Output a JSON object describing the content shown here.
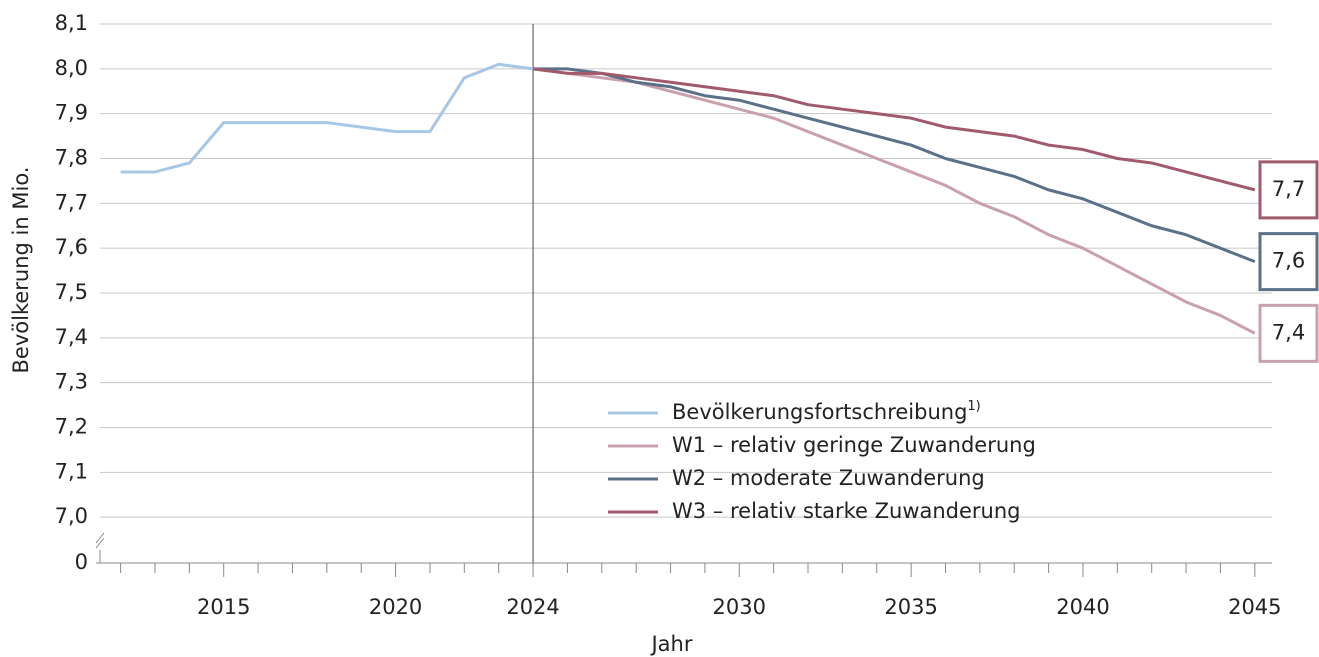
{
  "chart_data": {
    "type": "line",
    "y_axis_label": "Bevölkerung in Mio.",
    "x_axis_label": "Jahr",
    "x": [
      2012,
      2013,
      2014,
      2015,
      2016,
      2017,
      2018,
      2019,
      2020,
      2021,
      2022,
      2023,
      2024,
      2025,
      2026,
      2027,
      2028,
      2029,
      2030,
      2031,
      2032,
      2033,
      2034,
      2035,
      2036,
      2037,
      2038,
      2039,
      2040,
      2041,
      2042,
      2043,
      2044,
      2045
    ],
    "xlim": [
      2011.4,
      2045.5
    ],
    "xticks": [
      2015,
      2020,
      2024,
      2030,
      2035,
      2040,
      2045
    ],
    "marker_x": 2024,
    "ylim": [
      6.9,
      8.1
    ],
    "axis_break": true,
    "yticks": [
      {
        "value": 0,
        "label": "0"
      },
      {
        "value": 7.0,
        "label": "7,0"
      },
      {
        "value": 7.1,
        "label": "7,1"
      },
      {
        "value": 7.2,
        "label": "7,2"
      },
      {
        "value": 7.3,
        "label": "7,3"
      },
      {
        "value": 7.4,
        "label": "7,4"
      },
      {
        "value": 7.5,
        "label": "7,5"
      },
      {
        "value": 7.6,
        "label": "7,6"
      },
      {
        "value": 7.7,
        "label": "7,7"
      },
      {
        "value": 7.8,
        "label": "7,8"
      },
      {
        "value": 7.9,
        "label": "7,9"
      },
      {
        "value": 8.0,
        "label": "8,0"
      },
      {
        "value": 8.1,
        "label": "8,1"
      }
    ],
    "grid": true,
    "series": [
      {
        "name": "Bevölkerungsfortschreibung",
        "footnote": "1)",
        "color": "#a6c8e6",
        "values": [
          7.77,
          7.77,
          7.79,
          7.88,
          7.88,
          7.88,
          7.88,
          7.87,
          7.86,
          7.86,
          7.98,
          8.01,
          8.0,
          null,
          null,
          null,
          null,
          null,
          null,
          null,
          null,
          null,
          null,
          null,
          null,
          null,
          null,
          null,
          null,
          null,
          null,
          null,
          null,
          null
        ]
      },
      {
        "name": "W1 – relativ geringe Zuwanderung",
        "color": "#c9a0ae",
        "values": [
          null,
          null,
          null,
          null,
          null,
          null,
          null,
          null,
          null,
          null,
          null,
          null,
          8.0,
          7.99,
          7.98,
          7.97,
          7.95,
          7.93,
          7.91,
          7.89,
          7.86,
          7.83,
          7.8,
          7.77,
          7.74,
          7.7,
          7.67,
          7.63,
          7.6,
          7.56,
          7.52,
          7.48,
          7.45,
          7.41
        ],
        "value_labels": [
          null,
          null,
          null,
          null,
          null,
          null,
          null,
          null,
          null,
          null,
          null,
          null,
          null,
          null,
          null,
          null,
          null,
          null,
          null,
          null,
          null,
          null,
          null,
          null,
          null,
          null,
          null,
          null,
          null,
          null,
          null,
          null,
          null,
          "7,4"
        ]
      },
      {
        "name": "W2 – moderate Zuwanderung",
        "color": "#5b7189",
        "values": [
          null,
          null,
          null,
          null,
          null,
          null,
          null,
          null,
          null,
          null,
          null,
          null,
          8.0,
          8.0,
          7.99,
          7.97,
          7.96,
          7.94,
          7.93,
          7.91,
          7.89,
          7.87,
          7.85,
          7.83,
          7.8,
          7.78,
          7.76,
          7.73,
          7.71,
          7.68,
          7.65,
          7.63,
          7.6,
          7.57
        ],
        "value_labels": [
          null,
          null,
          null,
          null,
          null,
          null,
          null,
          null,
          null,
          null,
          null,
          null,
          null,
          null,
          null,
          null,
          null,
          null,
          null,
          null,
          null,
          null,
          null,
          null,
          null,
          null,
          null,
          null,
          null,
          null,
          null,
          null,
          null,
          "7,6"
        ]
      },
      {
        "name": "W3 – relativ starke Zuwanderung",
        "color": "#a05a6c",
        "values": [
          null,
          null,
          null,
          null,
          null,
          null,
          null,
          null,
          null,
          null,
          null,
          null,
          8.0,
          7.99,
          7.99,
          7.98,
          7.97,
          7.96,
          7.95,
          7.94,
          7.92,
          7.91,
          7.9,
          7.89,
          7.87,
          7.86,
          7.85,
          7.83,
          7.82,
          7.8,
          7.79,
          7.77,
          7.75,
          7.73
        ],
        "value_labels": [
          null,
          null,
          null,
          null,
          null,
          null,
          null,
          null,
          null,
          null,
          null,
          null,
          null,
          null,
          null,
          null,
          null,
          null,
          null,
          null,
          null,
          null,
          null,
          null,
          null,
          null,
          null,
          null,
          null,
          null,
          null,
          null,
          null,
          "7,7"
        ]
      }
    ]
  }
}
